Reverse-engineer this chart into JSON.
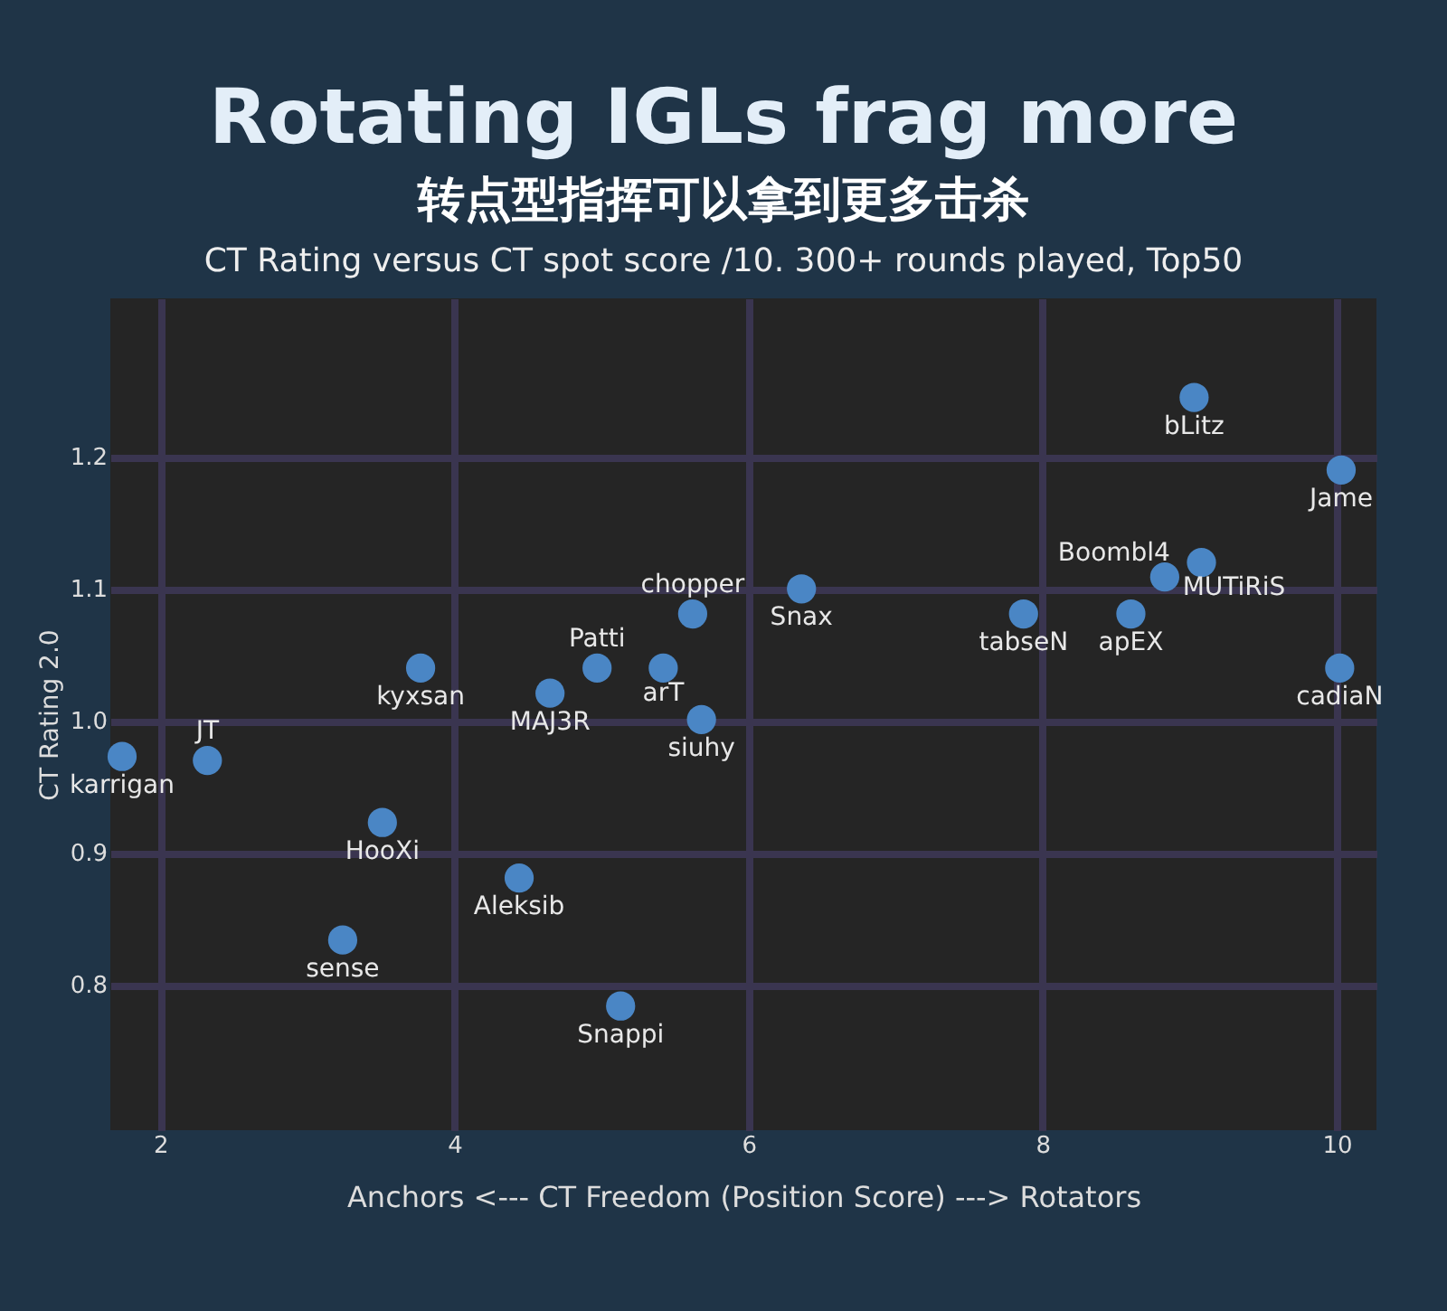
{
  "chart_data": {
    "type": "scatter",
    "title": "Rotating IGLs frag more",
    "subtitle": "转点型指挥可以拿到更多击杀",
    "annotations": [
      "CT Rating versus  CT spot score /10. 300+ rounds played, Top50"
    ],
    "xlabel": "Anchors <---      CT Freedom (Position Score)      ---> Rotators",
    "ylabel": "CT Rating 2.0",
    "xlim": [
      1.66,
      10.27
    ],
    "xticks": [
      2,
      4,
      6,
      8,
      10
    ],
    "ylim": [
      0.69,
      1.32
    ],
    "yticks": [
      0.8,
      0.9,
      {
        "value": 1.0,
        "label": "1.0"
      },
      1.1,
      1.2
    ],
    "grid": true,
    "marker": "circle",
    "series": [
      {
        "name": "karrigan",
        "color": "#4a86c5",
        "x": [
          1.74
        ],
        "values": [
          0.973
        ]
      },
      {
        "name": "JT",
        "color": "#4a86c5",
        "x": [
          2.32
        ],
        "values": [
          0.97
        ]
      },
      {
        "name": "kyxsan",
        "color": "#4a86c5",
        "x": [
          3.77
        ],
        "values": [
          1.04
        ]
      },
      {
        "name": "MAJ3R",
        "color": "#4a86c5",
        "x": [
          4.65
        ],
        "values": [
          1.021
        ]
      },
      {
        "name": "Patti",
        "color": "#4a86c5",
        "x": [
          4.97
        ],
        "values": [
          1.04
        ]
      },
      {
        "name": "arT",
        "color": "#4a86c5",
        "x": [
          5.42
        ],
        "values": [
          1.04
        ]
      },
      {
        "name": "chopper",
        "color": "#4a86c5",
        "x": [
          5.62
        ],
        "values": [
          1.081
        ]
      },
      {
        "name": "siuhy",
        "color": "#4a86c5",
        "x": [
          5.68
        ],
        "values": [
          1.001
        ]
      },
      {
        "name": "Snax",
        "color": "#4a86c5",
        "x": [
          6.36
        ],
        "values": [
          1.1
        ]
      },
      {
        "name": "tabseN",
        "color": "#4a86c5",
        "x": [
          7.87
        ],
        "values": [
          1.081
        ]
      },
      {
        "name": "apEX",
        "color": "#4a86c5",
        "x": [
          8.6
        ],
        "values": [
          1.081
        ]
      },
      {
        "name": "Boombl4",
        "color": "#4a86c5",
        "x": [
          8.83
        ],
        "values": [
          1.109
        ]
      },
      {
        "name": "MUTiRiS",
        "color": "#4a86c5",
        "x": [
          9.08
        ],
        "values": [
          1.12
        ]
      },
      {
        "name": "bLitz",
        "color": "#4a86c5",
        "x": [
          9.03
        ],
        "values": [
          1.245
        ]
      },
      {
        "name": "Jame",
        "color": "#4a86c5",
        "x": [
          10.03
        ],
        "values": [
          1.19
        ]
      },
      {
        "name": "cadiaN",
        "color": "#4a86c5",
        "x": [
          10.02
        ],
        "values": [
          1.04
        ]
      },
      {
        "name": "HooXi",
        "color": "#4a86c5",
        "x": [
          3.51
        ],
        "values": [
          0.923
        ]
      },
      {
        "name": "Aleksib",
        "color": "#4a86c5",
        "x": [
          4.44
        ],
        "values": [
          0.881
        ]
      },
      {
        "name": "sense",
        "color": "#4a86c5",
        "x": [
          3.24
        ],
        "values": [
          0.834
        ]
      },
      {
        "name": "Snappi",
        "color": "#4a86c5",
        "x": [
          5.13
        ],
        "values": [
          0.784
        ]
      }
    ]
  }
}
